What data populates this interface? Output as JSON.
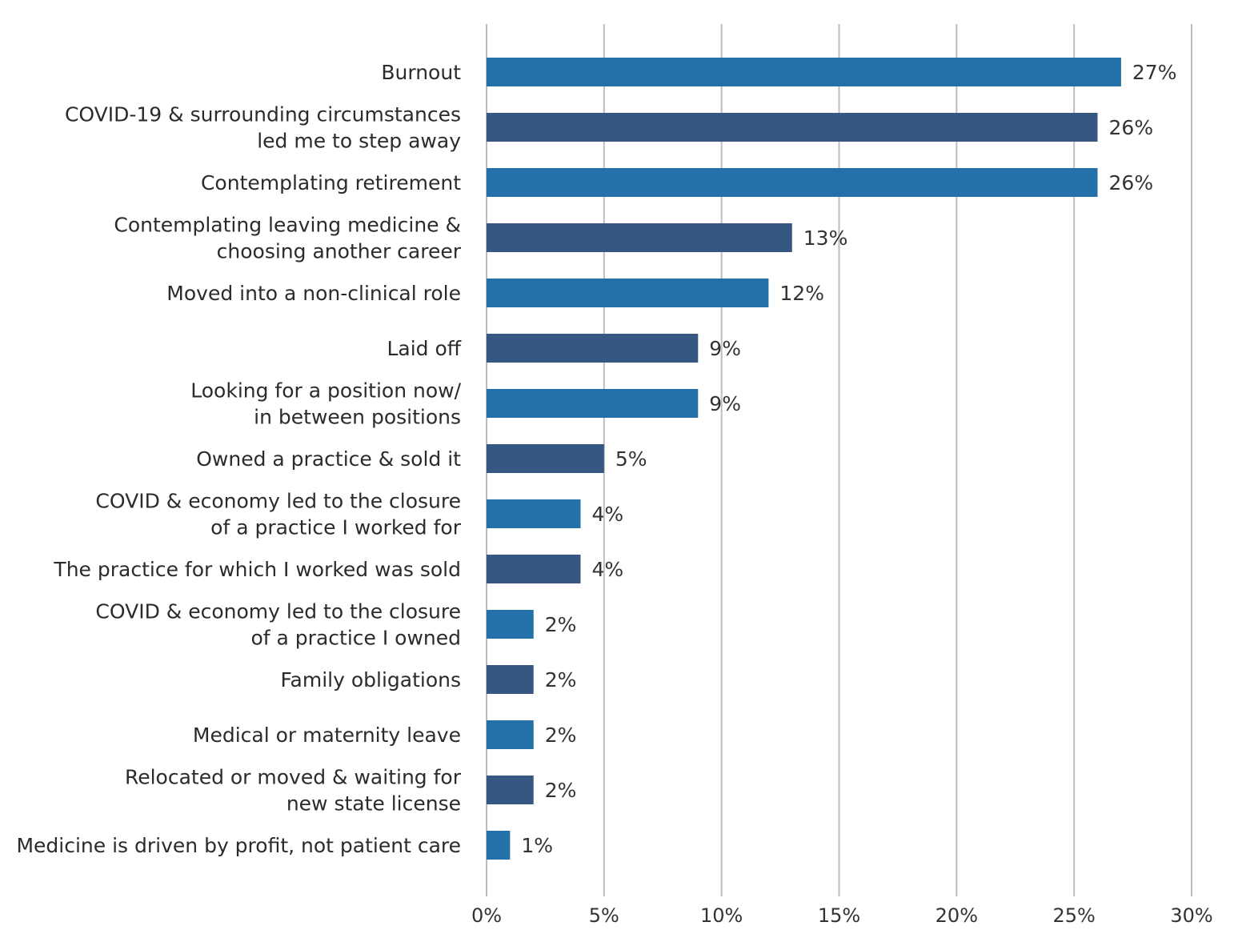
{
  "colors": {
    "bar_light": "#2470A8",
    "bar_dark": "#355781",
    "grid": "#bdbdbd",
    "text": "#2b2b2b"
  },
  "chart_data": {
    "type": "bar",
    "orientation": "horizontal",
    "categories": [
      [
        "Burnout"
      ],
      [
        "COVID-19 & surrounding circumstances",
        "led me to step away"
      ],
      [
        "Contemplating retirement"
      ],
      [
        "Contemplating leaving medicine &",
        "choosing another career"
      ],
      [
        "Moved into a non-clinical role"
      ],
      [
        "Laid off"
      ],
      [
        "Looking for a position now/",
        "in between positions"
      ],
      [
        "Owned a practice & sold it"
      ],
      [
        "COVID & economy led to the closure",
        "of a practice I worked for"
      ],
      [
        "The practice for which I worked was sold"
      ],
      [
        "COVID & economy led to the closure",
        "of a practice I owned"
      ],
      [
        "Family obligations"
      ],
      [
        "Medical or maternity leave"
      ],
      [
        "Relocated or moved & waiting for",
        "new state license"
      ],
      [
        "Medicine is driven by profit, not patient care"
      ]
    ],
    "values": [
      27,
      26,
      26,
      13,
      12,
      9,
      9,
      5,
      4,
      4,
      2,
      2,
      2,
      2,
      1
    ],
    "value_labels": [
      "27%",
      "26%",
      "26%",
      "13%",
      "12%",
      "9%",
      "9%",
      "5%",
      "4%",
      "4%",
      "2%",
      "2%",
      "2%",
      "2%",
      "1%"
    ],
    "bar_color_pattern": [
      "light",
      "dark"
    ],
    "xlim": [
      0,
      30
    ],
    "x_ticks": [
      0,
      5,
      10,
      15,
      20,
      25,
      30
    ],
    "x_tick_labels": [
      "0%",
      "5%",
      "10%",
      "15%",
      "20%",
      "25%",
      "30%"
    ],
    "grid": true,
    "legend": "none"
  }
}
